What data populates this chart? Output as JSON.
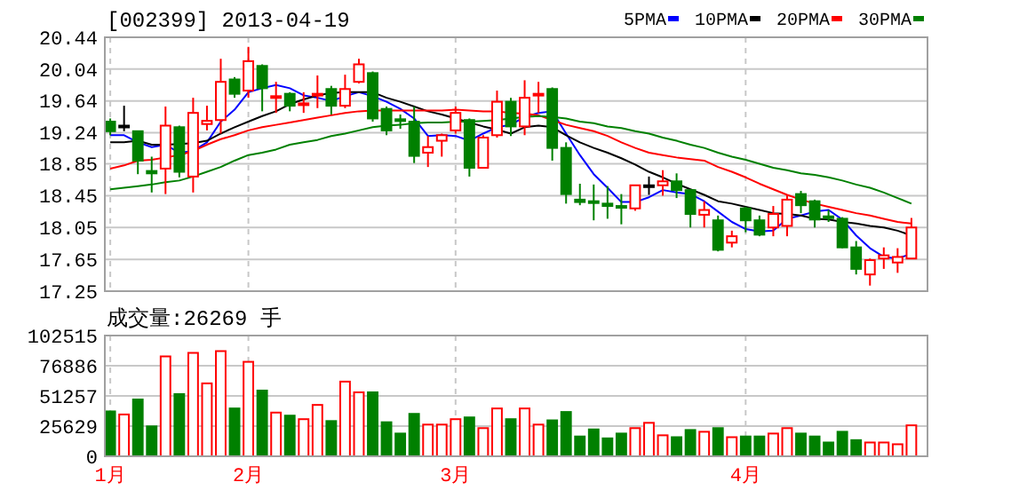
{
  "chart_data": [
    {
      "type": "candlestick",
      "title": "[002399] 2013-04-19",
      "categories": [
        null,
        null,
        null,
        null,
        null,
        null,
        null,
        null,
        null,
        null,
        null,
        null,
        null,
        null,
        null,
        null,
        null,
        null,
        null,
        null,
        null,
        null,
        null,
        null,
        null,
        null,
        null,
        null,
        null,
        null,
        null,
        null,
        null,
        null,
        null,
        null,
        null,
        null,
        null,
        null,
        null,
        null,
        null,
        null,
        null,
        null,
        null,
        null,
        null,
        null,
        null,
        null,
        null,
        null,
        null,
        null,
        null,
        null,
        null
      ],
      "ohlc": [
        [
          19.38,
          19.42,
          19.21,
          19.26
        ],
        [
          19.33,
          19.58,
          19.26,
          19.33
        ],
        [
          19.26,
          19.26,
          18.72,
          18.89
        ],
        [
          18.76,
          18.94,
          18.49,
          18.73
        ],
        [
          18.79,
          19.57,
          18.47,
          19.33
        ],
        [
          19.31,
          19.33,
          18.68,
          18.75
        ],
        [
          18.69,
          19.68,
          18.49,
          19.49
        ],
        [
          19.35,
          19.58,
          19.27,
          19.39
        ],
        [
          19.4,
          20.17,
          19.23,
          19.88
        ],
        [
          19.91,
          19.94,
          19.68,
          19.73
        ],
        [
          19.77,
          20.32,
          19.68,
          20.14
        ],
        [
          20.08,
          20.1,
          19.51,
          19.8
        ],
        [
          19.68,
          19.88,
          19.49,
          19.7
        ],
        [
          19.73,
          19.75,
          19.51,
          19.58
        ],
        [
          19.59,
          19.75,
          19.49,
          19.61
        ],
        [
          19.72,
          19.96,
          19.55,
          19.73
        ],
        [
          19.79,
          19.83,
          19.47,
          19.58
        ],
        [
          19.58,
          19.97,
          19.55,
          19.79
        ],
        [
          19.88,
          20.17,
          19.86,
          20.1
        ],
        [
          19.99,
          20.01,
          19.38,
          19.42
        ],
        [
          19.54,
          19.57,
          19.21,
          19.27
        ],
        [
          19.41,
          19.47,
          19.29,
          19.39
        ],
        [
          19.38,
          19.57,
          18.86,
          18.95
        ],
        [
          18.99,
          19.2,
          18.81,
          19.06
        ],
        [
          19.14,
          19.23,
          18.94,
          19.21
        ],
        [
          19.27,
          19.57,
          19.23,
          19.49
        ],
        [
          19.4,
          19.42,
          18.69,
          18.8
        ],
        [
          18.8,
          19.21,
          18.79,
          19.18
        ],
        [
          19.21,
          19.77,
          19.18,
          19.63
        ],
        [
          19.63,
          19.68,
          19.2,
          19.32
        ],
        [
          19.32,
          19.9,
          19.21,
          19.68
        ],
        [
          19.71,
          19.88,
          19.49,
          19.73
        ],
        [
          19.79,
          19.81,
          18.89,
          19.05
        ],
        [
          19.05,
          19.12,
          18.35,
          18.47
        ],
        [
          18.4,
          18.6,
          18.33,
          18.37
        ],
        [
          18.38,
          18.59,
          18.14,
          18.36
        ],
        [
          18.35,
          18.57,
          18.16,
          18.32
        ],
        [
          18.32,
          18.47,
          18.09,
          18.3
        ],
        [
          18.29,
          18.58,
          18.26,
          18.58
        ],
        [
          18.58,
          18.69,
          18.46,
          18.58
        ],
        [
          18.58,
          18.77,
          18.45,
          18.63
        ],
        [
          18.63,
          18.73,
          18.42,
          18.52
        ],
        [
          18.52,
          18.53,
          18.05,
          18.22
        ],
        [
          18.21,
          18.38,
          18.05,
          18.27
        ],
        [
          18.14,
          18.2,
          17.75,
          17.77
        ],
        [
          17.86,
          18.01,
          17.8,
          17.94
        ],
        [
          18.29,
          18.31,
          17.99,
          18.14
        ],
        [
          18.14,
          18.2,
          17.94,
          17.96
        ],
        [
          18.05,
          18.32,
          17.94,
          18.22
        ],
        [
          18.07,
          18.46,
          17.94,
          18.4
        ],
        [
          18.47,
          18.51,
          18.23,
          18.33
        ],
        [
          18.38,
          18.4,
          18.05,
          18.15
        ],
        [
          18.19,
          18.27,
          18.12,
          18.17
        ],
        [
          18.16,
          18.18,
          17.79,
          17.8
        ],
        [
          17.8,
          17.88,
          17.46,
          17.53
        ],
        [
          17.46,
          17.66,
          17.32,
          17.64
        ],
        [
          17.66,
          17.8,
          17.53,
          17.7
        ],
        [
          17.61,
          17.79,
          17.48,
          17.68
        ],
        [
          17.66,
          18.17,
          17.66,
          18.05
        ]
      ],
      "series": [
        {
          "type": "line",
          "name": "5PMA",
          "color": "#0000ff",
          "values": [
            19.21,
            19.21,
            19.12,
            19.06,
            19.09,
            18.99,
            19.01,
            19.12,
            19.38,
            19.53,
            19.75,
            19.8,
            19.84,
            19.8,
            19.71,
            19.68,
            19.64,
            19.7,
            19.75,
            19.7,
            19.63,
            19.54,
            19.42,
            19.2,
            19.21,
            19.2,
            19.14,
            19.23,
            19.31,
            19.34,
            19.44,
            19.49,
            19.51,
            19.23,
            18.96,
            18.72,
            18.55,
            18.37,
            18.37,
            18.43,
            18.52,
            18.49,
            18.47,
            18.38,
            18.25,
            18.12,
            18.03,
            18.0,
            18.01,
            18.16,
            18.2,
            18.25,
            18.27,
            18.15,
            17.95,
            17.79,
            17.68,
            17.66,
            17.72
          ]
        },
        {
          "type": "line",
          "name": "10PMA",
          "color": "#000000",
          "values": [
            19.12,
            19.12,
            19.14,
            19.09,
            19.09,
            19.1,
            19.11,
            19.14,
            19.23,
            19.31,
            19.38,
            19.45,
            19.51,
            19.6,
            19.66,
            19.71,
            19.74,
            19.75,
            19.75,
            19.75,
            19.68,
            19.63,
            19.57,
            19.51,
            19.47,
            19.42,
            19.37,
            19.32,
            19.28,
            19.23,
            19.31,
            19.33,
            19.31,
            19.21,
            19.12,
            19.05,
            18.99,
            18.92,
            18.84,
            18.75,
            18.68,
            18.6,
            18.53,
            18.46,
            18.38,
            18.35,
            18.31,
            18.27,
            18.23,
            18.22,
            18.2,
            18.16,
            18.15,
            18.12,
            18.1,
            18.07,
            18.05,
            18.01,
            17.95
          ]
        },
        {
          "type": "line",
          "name": "20PMA",
          "color": "#ff0000",
          "values": [
            18.79,
            18.83,
            18.89,
            18.9,
            18.93,
            18.96,
            19.01,
            19.09,
            19.16,
            19.21,
            19.27,
            19.31,
            19.34,
            19.37,
            19.4,
            19.43,
            19.46,
            19.49,
            19.51,
            19.52,
            19.52,
            19.52,
            19.52,
            19.52,
            19.52,
            19.53,
            19.52,
            19.51,
            19.51,
            19.49,
            19.48,
            19.46,
            19.4,
            19.34,
            19.3,
            19.26,
            19.2,
            19.12,
            19.05,
            18.99,
            18.96,
            18.93,
            18.91,
            18.89,
            18.81,
            18.75,
            18.68,
            18.6,
            18.53,
            18.46,
            18.4,
            18.35,
            18.31,
            18.27,
            18.23,
            18.2,
            18.16,
            18.12,
            18.1
          ]
        },
        {
          "type": "line",
          "name": "30PMA",
          "color": "#008000",
          "values": [
            18.53,
            18.55,
            18.57,
            18.59,
            18.62,
            18.64,
            18.69,
            18.75,
            18.81,
            18.89,
            18.96,
            18.99,
            19.03,
            19.09,
            19.12,
            19.15,
            19.2,
            19.23,
            19.27,
            19.31,
            19.33,
            19.34,
            19.36,
            19.37,
            19.37,
            19.38,
            19.38,
            19.39,
            19.4,
            19.42,
            19.44,
            19.45,
            19.44,
            19.42,
            19.38,
            19.36,
            19.32,
            19.3,
            19.26,
            19.23,
            19.18,
            19.14,
            19.09,
            19.05,
            18.99,
            18.94,
            18.9,
            18.85,
            18.8,
            18.77,
            18.73,
            18.71,
            18.68,
            18.64,
            18.59,
            18.55,
            18.49,
            18.42,
            18.35
          ]
        }
      ],
      "ylim": [
        17.25,
        20.44
      ],
      "yticks": [
        17.25,
        17.65,
        18.05,
        18.45,
        18.85,
        19.24,
        19.64,
        20.04,
        20.44
      ],
      "grid": true,
      "legend": "top right",
      "tick_labels": "y"
    },
    {
      "type": "bar",
      "title": "成交量:26269 手",
      "categories": [
        "1月",
        null,
        null,
        null,
        null,
        null,
        null,
        null,
        null,
        null,
        "2月",
        null,
        null,
        null,
        null,
        null,
        null,
        null,
        null,
        null,
        null,
        null,
        null,
        null,
        null,
        "3月",
        null,
        null,
        null,
        null,
        null,
        null,
        null,
        null,
        null,
        null,
        null,
        null,
        null,
        null,
        null,
        null,
        null,
        null,
        null,
        null,
        "4月",
        null,
        null,
        null,
        null,
        null,
        null,
        null,
        null,
        null,
        null,
        null,
        null
      ],
      "values": [
        38100,
        35500,
        48200,
        25400,
        84800,
        52800,
        87800,
        61900,
        89300,
        40600,
        80200,
        55800,
        37100,
        34500,
        31500,
        43600,
        29900,
        63400,
        54300,
        54300,
        28900,
        19300,
        36000,
        26900,
        26900,
        31500,
        33000,
        23900,
        40600,
        31500,
        40600,
        26900,
        30500,
        37600,
        16800,
        22800,
        15200,
        19300,
        23900,
        28400,
        17800,
        16200,
        22300,
        20800,
        23900,
        16200,
        16800,
        16800,
        19300,
        23900,
        19300,
        16800,
        11700,
        20800,
        13700,
        11700,
        11700,
        10200,
        26269
      ],
      "colors": [
        "#008000",
        "#ff0000",
        "#008000",
        "#008000",
        "#ff0000",
        "#008000",
        "#ff0000",
        "#ff0000",
        "#ff0000",
        "#008000",
        "#ff0000",
        "#008000",
        "#ff0000",
        "#008000",
        "#ff0000",
        "#ff0000",
        "#008000",
        "#ff0000",
        "#ff0000",
        "#008000",
        "#008000",
        "#008000",
        "#008000",
        "#ff0000",
        "#ff0000",
        "#ff0000",
        "#008000",
        "#ff0000",
        "#ff0000",
        "#008000",
        "#ff0000",
        "#ff0000",
        "#008000",
        "#008000",
        "#008000",
        "#008000",
        "#008000",
        "#008000",
        "#ff0000",
        "#ff0000",
        "#ff0000",
        "#008000",
        "#008000",
        "#ff0000",
        "#008000",
        "#ff0000",
        "#008000",
        "#008000",
        "#ff0000",
        "#ff0000",
        "#008000",
        "#008000",
        "#008000",
        "#008000",
        "#008000",
        "#ff0000",
        "#ff0000",
        "#ff0000",
        "#ff0000"
      ],
      "ylim": [
        0,
        102515
      ],
      "yticks": [
        0,
        25629,
        51257,
        76886,
        102515
      ],
      "grid": true
    }
  ]
}
